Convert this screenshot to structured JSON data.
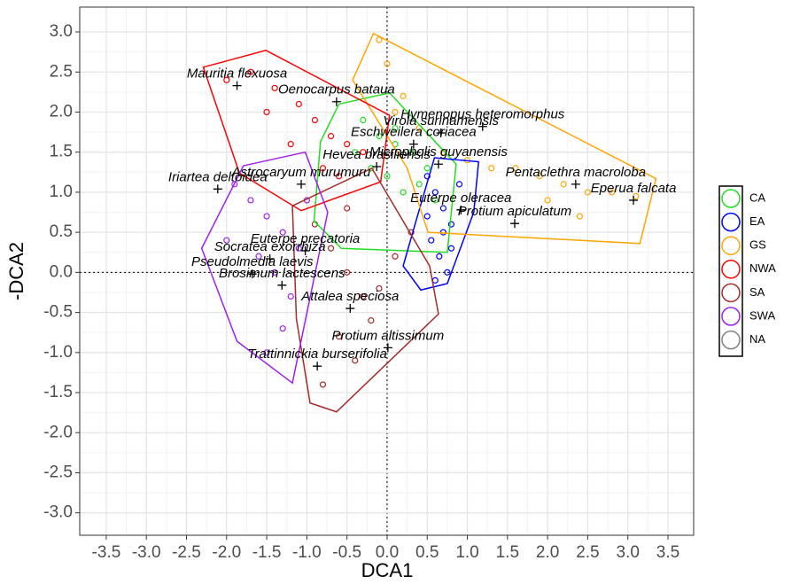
{
  "chart_data": {
    "type": "scatter",
    "x_label": "DCA1",
    "y_label": "-DCA2",
    "xlim": [
      -3.83,
      3.82
    ],
    "ylim": [
      -3.28,
      3.31
    ],
    "xticks": [
      -3.5,
      {
        "value": -3,
        "label": "-3.0"
      },
      -2.5,
      {
        "value": -2,
        "label": "-2.0"
      },
      -1.5,
      {
        "value": -1,
        "label": "-1.0"
      },
      -0.5,
      {
        "value": 0,
        "label": "0.0"
      },
      0.5,
      {
        "value": 1,
        "label": "1.0"
      },
      1.5,
      {
        "value": 2,
        "label": "2.0"
      },
      2.5,
      {
        "value": 3,
        "label": "3.0"
      },
      3.5
    ],
    "yticks": [
      {
        "value": -3,
        "label": "-3.0"
      },
      -2.5,
      {
        "value": -2,
        "label": "-2.0"
      },
      -1.5,
      {
        "value": -1,
        "label": "-1.0"
      },
      -0.5,
      {
        "value": 0,
        "label": "0.0"
      },
      0.5,
      {
        "value": 1,
        "label": "1.0"
      },
      1.5,
      {
        "value": 2,
        "label": "2.0"
      },
      2.5,
      {
        "value": 3,
        "label": "3.0"
      }
    ],
    "grid": true,
    "legend": "right",
    "series": [
      {
        "name": "CA",
        "color": "#22dd22",
        "x": [
          -0.3,
          -0.1,
          0.1,
          0.3,
          0.5,
          -0.4,
          0.0,
          0.2,
          0.4,
          -0.2,
          0.6,
          0.1
        ],
        "y": [
          1.9,
          1.7,
          1.6,
          1.5,
          1.3,
          1.5,
          1.2,
          1.0,
          1.1,
          1.3,
          0.9,
          1.8
        ],
        "hull_x": [
          -0.6,
          0.03,
          0.86,
          0.75,
          -0.57,
          -0.91,
          -0.83
        ],
        "hull_y": [
          2.1,
          2.24,
          1.35,
          0.25,
          0.3,
          0.64,
          1.63
        ]
      },
      {
        "name": "EA",
        "color": "#0000ff",
        "x": [
          0.5,
          0.6,
          0.7,
          0.8,
          0.55,
          0.65,
          0.75,
          0.6,
          0.7,
          0.5,
          0.9,
          0.8
        ],
        "y": [
          1.2,
          1.0,
          0.8,
          0.6,
          0.4,
          0.2,
          0.0,
          -0.1,
          0.5,
          0.7,
          1.1,
          0.3
        ],
        "hull_x": [
          0.59,
          1.14,
          1.08,
          0.75,
          0.42,
          0.2,
          0.36
        ],
        "hull_y": [
          1.43,
          1.38,
          0.75,
          -0.14,
          -0.22,
          0.08,
          0.64
        ]
      },
      {
        "name": "GS",
        "color": "#ffa500",
        "x": [
          0.0,
          0.2,
          0.4,
          0.7,
          1.0,
          1.3,
          1.6,
          1.9,
          2.2,
          2.5,
          2.8,
          3.1,
          -0.1,
          0.1,
          2.0,
          2.4
        ],
        "y": [
          2.6,
          2.2,
          1.8,
          1.5,
          1.4,
          1.3,
          1.3,
          1.2,
          1.1,
          1.0,
          1.0,
          0.95,
          2.9,
          2.0,
          0.9,
          0.7
        ],
        "hull_x": [
          -0.17,
          3.35,
          3.15,
          0.51,
          0.25,
          -0.43
        ],
        "hull_y": [
          2.98,
          1.17,
          0.36,
          0.5,
          1.3,
          2.4
        ]
      },
      {
        "name": "NWA",
        "color": "#ff0000",
        "x": [
          -2.0,
          -1.7,
          -1.4,
          -1.1,
          -0.9,
          -0.7,
          -0.5,
          -0.3,
          -1.2,
          -0.8,
          -1.5,
          -0.6
        ],
        "y": [
          2.4,
          2.5,
          2.3,
          2.1,
          1.9,
          1.7,
          1.6,
          1.5,
          1.6,
          1.3,
          2.0,
          1.2
        ],
        "hull_x": [
          -2.29,
          -1.51,
          0.03,
          -0.08,
          -1.07,
          -1.84
        ],
        "hull_y": [
          2.56,
          2.77,
          1.96,
          1.13,
          0.77,
          1.24
        ]
      },
      {
        "name": "SA",
        "color": "#a52a2a",
        "x": [
          -0.9,
          -0.7,
          -0.5,
          -0.3,
          -0.1,
          0.1,
          0.3,
          -0.6,
          -0.4,
          -0.8,
          -0.2,
          -0.5
        ],
        "y": [
          0.6,
          0.3,
          0.0,
          -0.3,
          -0.2,
          0.2,
          0.5,
          -0.8,
          -1.1,
          -1.4,
          -0.6,
          0.8
        ],
        "hull_x": [
          -1.18,
          -0.19,
          0.53,
          0.64,
          -0.63,
          -0.96,
          -1.13
        ],
        "hull_y": [
          0.83,
          1.3,
          0.08,
          -0.52,
          -1.74,
          -1.63,
          -0.58
        ]
      },
      {
        "name": "SWA",
        "color": "#a020f0",
        "x": [
          -1.9,
          -1.7,
          -1.5,
          -1.3,
          -1.1,
          -1.6,
          -1.4,
          -1.2,
          -2.0,
          -1.0,
          -1.3,
          -1.5
        ],
        "y": [
          1.1,
          0.9,
          0.7,
          0.5,
          0.3,
          0.2,
          0.0,
          -0.3,
          0.4,
          0.9,
          -0.7,
          -1.0
        ],
        "hull_x": [
          -1.79,
          -1.02,
          -0.74,
          -1.18,
          -1.87,
          -2.31
        ],
        "hull_y": [
          1.33,
          1.5,
          0.75,
          -1.38,
          -0.86,
          0.3
        ]
      },
      {
        "name": "NA",
        "color": "#808080",
        "x": [],
        "y": [],
        "hull_x": [],
        "hull_y": []
      }
    ],
    "annotations": [
      {
        "text": "Mauritia flexuosa",
        "x": -1.87,
        "y": 2.33
      },
      {
        "text": "Oenocarpus bataua",
        "x": -0.63,
        "y": 2.13
      },
      {
        "text": "Hymenopus heteromorphus",
        "x": 1.19,
        "y": 1.82
      },
      {
        "text": "Virola surinamensis",
        "x": 0.67,
        "y": 1.74
      },
      {
        "text": "Eschweilera coriacea",
        "x": 0.33,
        "y": 1.6
      },
      {
        "text": "Hevea brasiliensis",
        "x": -0.13,
        "y": 1.32
      },
      {
        "text": "Pentaclethra macroloba",
        "x": 2.35,
        "y": 1.1
      },
      {
        "text": "Micropholis guyanensis",
        "x": 0.64,
        "y": 1.35
      },
      {
        "text": "Iriartea deltoidea",
        "x": -2.11,
        "y": 1.04
      },
      {
        "text": "Astrocaryum murumuru",
        "x": -1.07,
        "y": 1.1
      },
      {
        "text": "Euterpe oleracea",
        "x": 0.92,
        "y": 0.78
      },
      {
        "text": "Eperua falcata",
        "x": 3.07,
        "y": 0.9
      },
      {
        "text": "Euterpe precatoria",
        "x": -1.02,
        "y": 0.27
      },
      {
        "text": "Protium apiculatum",
        "x": 1.59,
        "y": 0.61
      },
      {
        "text": "Socratea exorrhiza",
        "x": -1.46,
        "y": 0.17
      },
      {
        "text": "Pseudolmedia laevis",
        "x": -1.68,
        "y": -0.02
      },
      {
        "text": "Brosimum lactescens",
        "x": -1.31,
        "y": -0.16
      },
      {
        "text": "Attalea speciosa",
        "x": -0.46,
        "y": -0.45
      },
      {
        "text": "Protium altissimum",
        "x": 0.01,
        "y": -0.94
      },
      {
        "text": "Trattinnickia burserifolia",
        "x": -0.87,
        "y": -1.17
      }
    ]
  }
}
